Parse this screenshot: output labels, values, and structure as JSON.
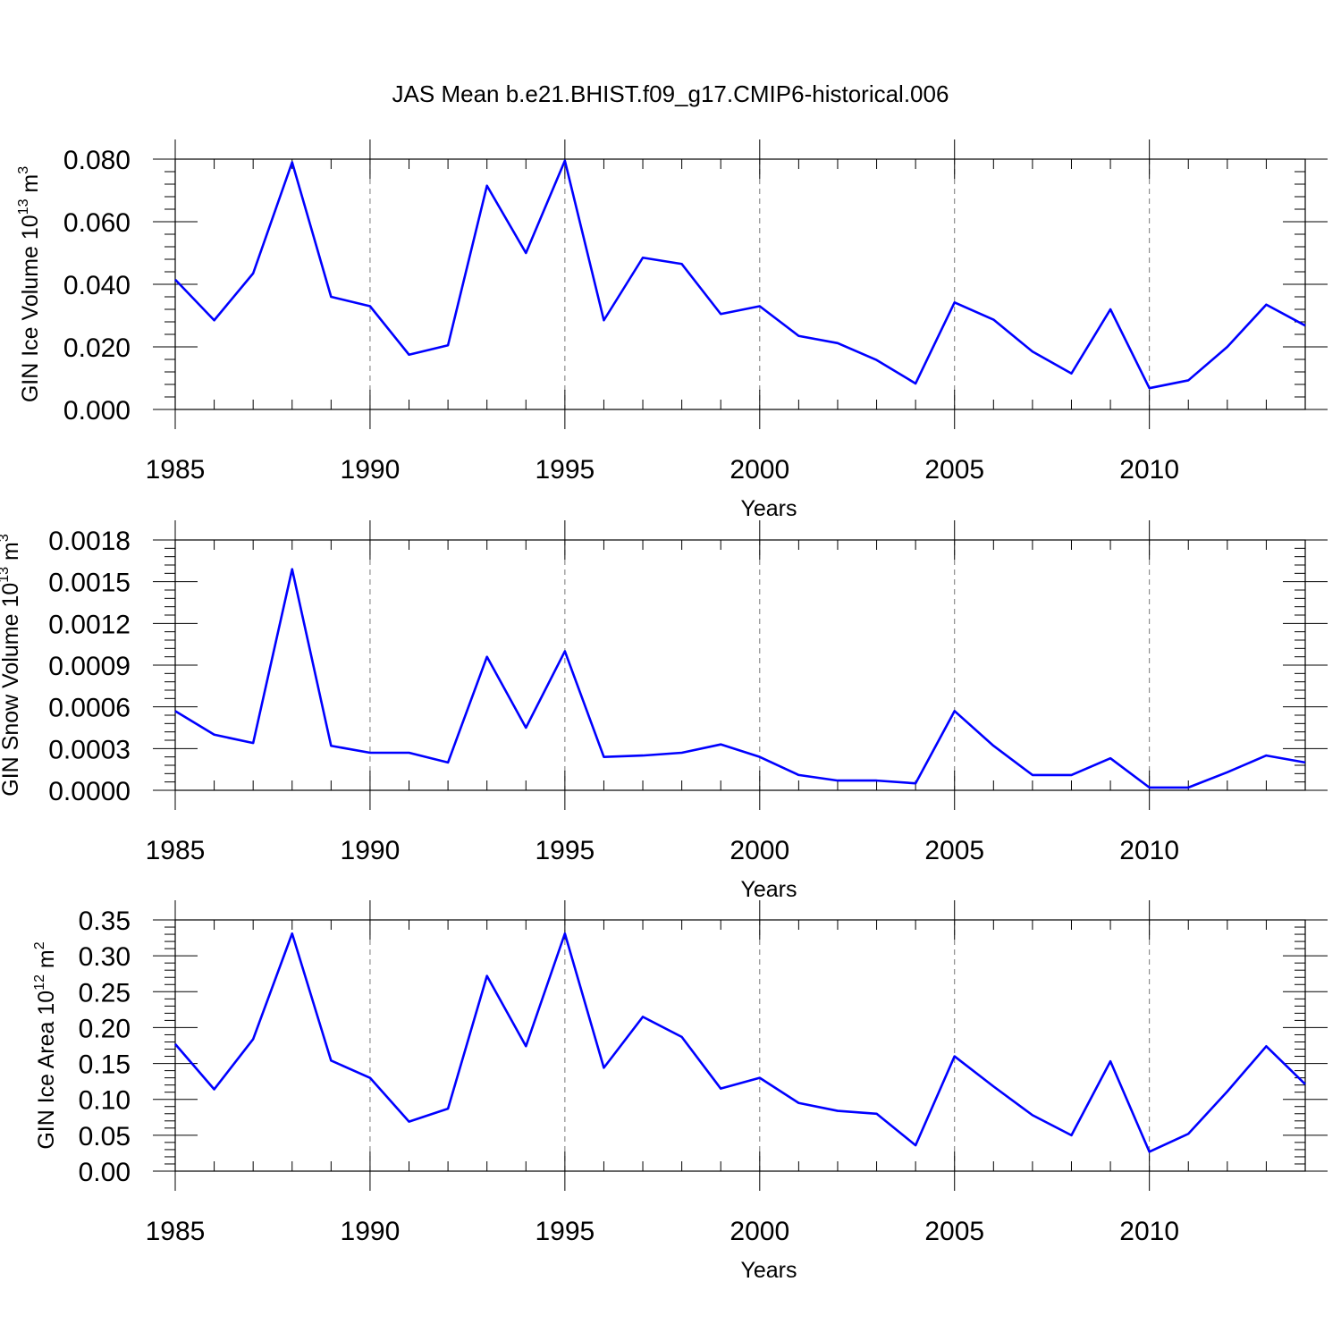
{
  "title": "JAS Mean b.e21.BHIST.f09_g17.CMIP6-historical.006",
  "colors": {
    "line": "#0000ff",
    "frame": "#000000",
    "grid": "#777777"
  },
  "chart_data": [
    {
      "type": "line",
      "xlabel": "Years",
      "ylabel": {
        "prefix": "GIN Ice Volume 10",
        "exp": "13",
        "unit": " m",
        "unit_exp": "3"
      },
      "xlim": [
        1985,
        2014
      ],
      "ylim": [
        0,
        0.08
      ],
      "x_ticks": [
        "1985",
        "1990",
        "1995",
        "2000",
        "2005",
        "2010"
      ],
      "y_ticks": [
        "0.000",
        "0.020",
        "0.040",
        "0.060",
        "0.080"
      ],
      "grid": "vertical-dashed",
      "x": [
        1985,
        1986,
        1987,
        1988,
        1989,
        1990,
        1991,
        1992,
        1993,
        1994,
        1995,
        1996,
        1997,
        1998,
        1999,
        2000,
        2001,
        2002,
        2003,
        2004,
        2005,
        2006,
        2007,
        2008,
        2009,
        2010,
        2011,
        2012,
        2013,
        2014
      ],
      "series": [
        {
          "name": "GIN Ice Volume",
          "values": [
            0.0415,
            0.0285,
            0.0435,
            0.079,
            0.036,
            0.033,
            0.0175,
            0.0205,
            0.0715,
            0.05,
            0.0795,
            0.0285,
            0.0485,
            0.0465,
            0.0305,
            0.033,
            0.0235,
            0.0212,
            0.0158,
            0.0083,
            0.0342,
            0.0287,
            0.0185,
            0.0115,
            0.032,
            0.0068,
            0.0093,
            0.02,
            0.0335,
            0.0268
          ]
        }
      ]
    },
    {
      "type": "line",
      "xlabel": "Years",
      "ylabel": {
        "prefix": "GIN Snow Volume 10",
        "exp": "13",
        "unit": " m",
        "unit_exp": "3"
      },
      "xlim": [
        1985,
        2014
      ],
      "ylim": [
        0,
        0.0018
      ],
      "x_ticks": [
        "1985",
        "1990",
        "1995",
        "2000",
        "2005",
        "2010"
      ],
      "y_ticks": [
        "0.0000",
        "0.0003",
        "0.0006",
        "0.0009",
        "0.0012",
        "0.0015",
        "0.0018"
      ],
      "grid": "vertical-dashed",
      "x": [
        1985,
        1986,
        1987,
        1988,
        1989,
        1990,
        1991,
        1992,
        1993,
        1994,
        1995,
        1996,
        1997,
        1998,
        1999,
        2000,
        2001,
        2002,
        2003,
        2004,
        2005,
        2006,
        2007,
        2008,
        2009,
        2010,
        2011,
        2012,
        2013,
        2014
      ],
      "series": [
        {
          "name": "GIN Snow Volume",
          "values": [
            0.00057,
            0.0004,
            0.00034,
            0.00159,
            0.00032,
            0.00027,
            0.00027,
            0.0002,
            0.00096,
            0.00045,
            0.001,
            0.00024,
            0.00025,
            0.00027,
            0.00033,
            0.00024,
            0.00011,
            7e-05,
            7e-05,
            5e-05,
            0.00057,
            0.00032,
            0.00011,
            0.00011,
            0.00023,
            2e-05,
            2e-05,
            0.00013,
            0.00025,
            0.0002
          ]
        }
      ]
    },
    {
      "type": "line",
      "xlabel": "Years",
      "ylabel": {
        "prefix": "GIN Ice Area 10",
        "exp": "12",
        "unit": " m",
        "unit_exp": "2"
      },
      "xlim": [
        1985,
        2014
      ],
      "ylim": [
        0,
        0.35
      ],
      "x_ticks": [
        "1985",
        "1990",
        "1995",
        "2000",
        "2005",
        "2010"
      ],
      "y_ticks": [
        "0.00",
        "0.05",
        "0.10",
        "0.15",
        "0.20",
        "0.25",
        "0.30",
        "0.35"
      ],
      "grid": "vertical-dashed",
      "x": [
        1985,
        1986,
        1987,
        1988,
        1989,
        1990,
        1991,
        1992,
        1993,
        1994,
        1995,
        1996,
        1997,
        1998,
        1999,
        2000,
        2001,
        2002,
        2003,
        2004,
        2005,
        2006,
        2007,
        2008,
        2009,
        2010,
        2011,
        2012,
        2013,
        2014
      ],
      "series": [
        {
          "name": "GIN Ice Area",
          "values": [
            0.177,
            0.114,
            0.184,
            0.331,
            0.154,
            0.13,
            0.069,
            0.087,
            0.272,
            0.174,
            0.331,
            0.144,
            0.215,
            0.187,
            0.115,
            0.13,
            0.095,
            0.084,
            0.08,
            0.036,
            0.16,
            0.118,
            0.078,
            0.05,
            0.153,
            0.027,
            0.052,
            0.111,
            0.174,
            0.121
          ]
        }
      ]
    }
  ]
}
